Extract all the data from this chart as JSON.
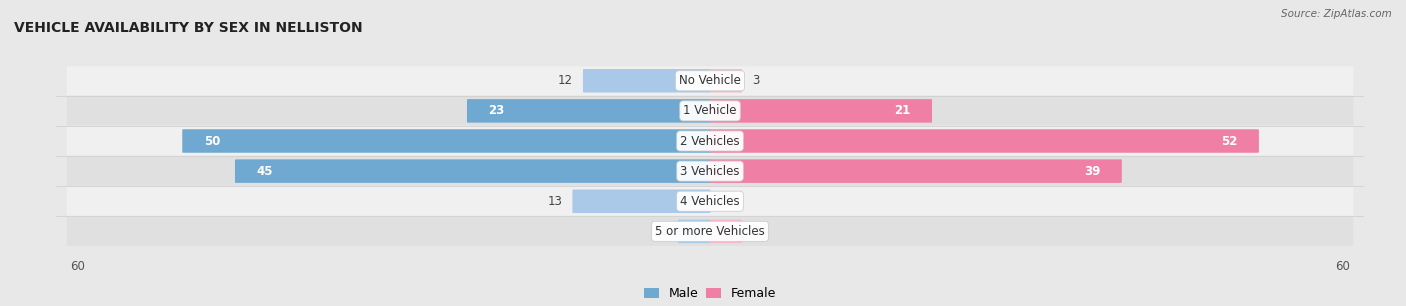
{
  "title": "VEHICLE AVAILABILITY BY SEX IN NELLISTON",
  "source": "Source: ZipAtlas.com",
  "categories": [
    "No Vehicle",
    "1 Vehicle",
    "2 Vehicles",
    "3 Vehicles",
    "4 Vehicles",
    "5 or more Vehicles"
  ],
  "male_values": [
    12,
    23,
    50,
    45,
    13,
    3
  ],
  "female_values": [
    3,
    21,
    52,
    39,
    0,
    3
  ],
  "male_color_light": "#aac8e8",
  "male_color_dark": "#6fa8d0",
  "female_color_light": "#f7b8cc",
  "female_color_dark": "#ef7fa4",
  "axis_max": 60,
  "background_color": "#e8e8e8",
  "row_bg_even": "#f0f0f0",
  "row_bg_odd": "#e0e0e0",
  "label_fontsize": 8.5,
  "title_fontsize": 10,
  "value_threshold": 20
}
